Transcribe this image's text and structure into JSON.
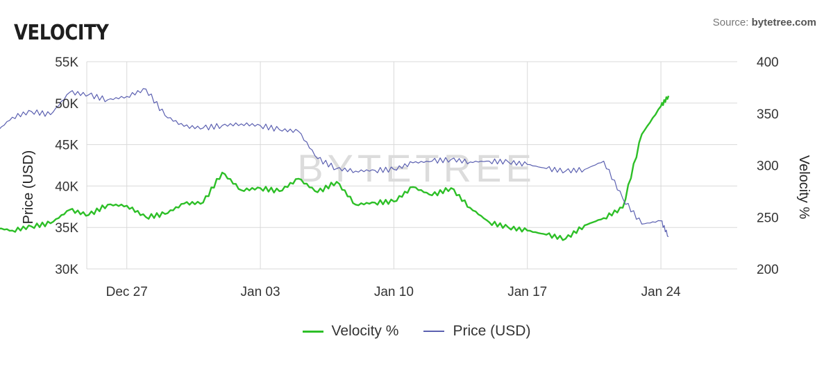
{
  "header": {
    "title": "VELOCITY",
    "source_prefix": "Source: ",
    "source_name": "bytetree.com"
  },
  "watermark": "BYTETREE",
  "legend": [
    {
      "label": "Velocity %",
      "color": "#2dbf27"
    },
    {
      "label": "Price (USD)",
      "color": "#5a5fb0"
    }
  ],
  "chart_data": {
    "type": "line",
    "x_axis": {
      "ticks": [
        "Dec 27",
        "Jan 03",
        "Jan 10",
        "Jan 17",
        "Jan 24"
      ],
      "range_days": [
        -6.1,
        28.0
      ]
    },
    "y_left": {
      "label": "Price (USD)",
      "min": 30000,
      "max": 55000,
      "ticks": [
        "30K",
        "35K",
        "40K",
        "45K",
        "50K",
        "55K"
      ]
    },
    "y_right": {
      "label": "Velocity %",
      "min": 200,
      "max": 400,
      "ticks": [
        "200",
        "250",
        "300",
        "350",
        "400"
      ]
    },
    "grid": true,
    "series": [
      {
        "name": "Price (USD)",
        "axis": "left",
        "color": "#5a5fb0",
        "points": [
          [
            "Dec 20",
            46200
          ],
          [
            "Dec 21",
            48300
          ],
          [
            "Dec 22",
            49000
          ],
          [
            "Dec 23",
            48600
          ],
          [
            "Dec 24",
            51300
          ],
          [
            "Dec 25",
            51000
          ],
          [
            "Dec 26",
            50400
          ],
          [
            "Dec 27",
            50800
          ],
          [
            "Dec 28",
            51700
          ],
          [
            "Dec 29",
            48500
          ],
          [
            "Dec 30",
            47200
          ],
          [
            "Dec 31",
            47000
          ],
          [
            "Jan 01",
            47300
          ],
          [
            "Jan 02",
            47500
          ],
          [
            "Jan 03",
            47300
          ],
          [
            "Jan 04",
            46800
          ],
          [
            "Jan 05",
            46600
          ],
          [
            "Jan 06",
            43300
          ],
          [
            "Jan 07",
            42100
          ],
          [
            "Jan 08",
            41800
          ],
          [
            "Jan 09",
            41900
          ],
          [
            "Jan 10",
            42000
          ],
          [
            "Jan 11",
            42800
          ],
          [
            "Jan 12",
            43000
          ],
          [
            "Jan 13",
            43200
          ],
          [
            "Jan 14",
            42900
          ],
          [
            "Jan 15",
            43000
          ],
          [
            "Jan 16",
            42900
          ],
          [
            "Jan 17",
            42600
          ],
          [
            "Jan 18",
            42100
          ],
          [
            "Jan 19",
            41800
          ],
          [
            "Jan 20",
            42000
          ],
          [
            "Jan 21",
            43000
          ],
          [
            "Jan 22",
            38500
          ],
          [
            "Jan 23",
            35400
          ],
          [
            "Jan 24",
            35800
          ],
          [
            "Jan 24.4",
            33900
          ]
        ]
      },
      {
        "name": "Velocity %",
        "axis": "right",
        "color": "#2dbf27",
        "points": [
          [
            "Dec 20",
            240
          ],
          [
            "Dec 21",
            237
          ],
          [
            "Dec 22",
            241
          ],
          [
            "Dec 23",
            244
          ],
          [
            "Dec 24",
            257
          ],
          [
            "Dec 25",
            252
          ],
          [
            "Dec 26",
            262
          ],
          [
            "Dec 27",
            261
          ],
          [
            "Dec 28",
            250
          ],
          [
            "Dec 29",
            253
          ],
          [
            "Dec 30",
            263
          ],
          [
            "Dec 31",
            264
          ],
          [
            "Jan 01",
            293
          ],
          [
            "Jan 02",
            276
          ],
          [
            "Jan 03",
            278
          ],
          [
            "Jan 04",
            275
          ],
          [
            "Jan 05",
            287
          ],
          [
            "Jan 06",
            274
          ],
          [
            "Jan 07",
            284
          ],
          [
            "Jan 08",
            262
          ],
          [
            "Jan 09",
            264
          ],
          [
            "Jan 10",
            265
          ],
          [
            "Jan 11",
            279
          ],
          [
            "Jan 12",
            271
          ],
          [
            "Jan 13",
            278
          ],
          [
            "Jan 14",
            259
          ],
          [
            "Jan 15",
            245
          ],
          [
            "Jan 16",
            240
          ],
          [
            "Jan 17",
            237
          ],
          [
            "Jan 18",
            233
          ],
          [
            "Jan 19",
            229
          ],
          [
            "Jan 20",
            242
          ],
          [
            "Jan 21",
            249
          ],
          [
            "Jan 22",
            259
          ],
          [
            "Jan 23",
            330
          ],
          [
            "Jan 24",
            357
          ],
          [
            "Jan 24.4",
            367
          ]
        ]
      }
    ]
  }
}
